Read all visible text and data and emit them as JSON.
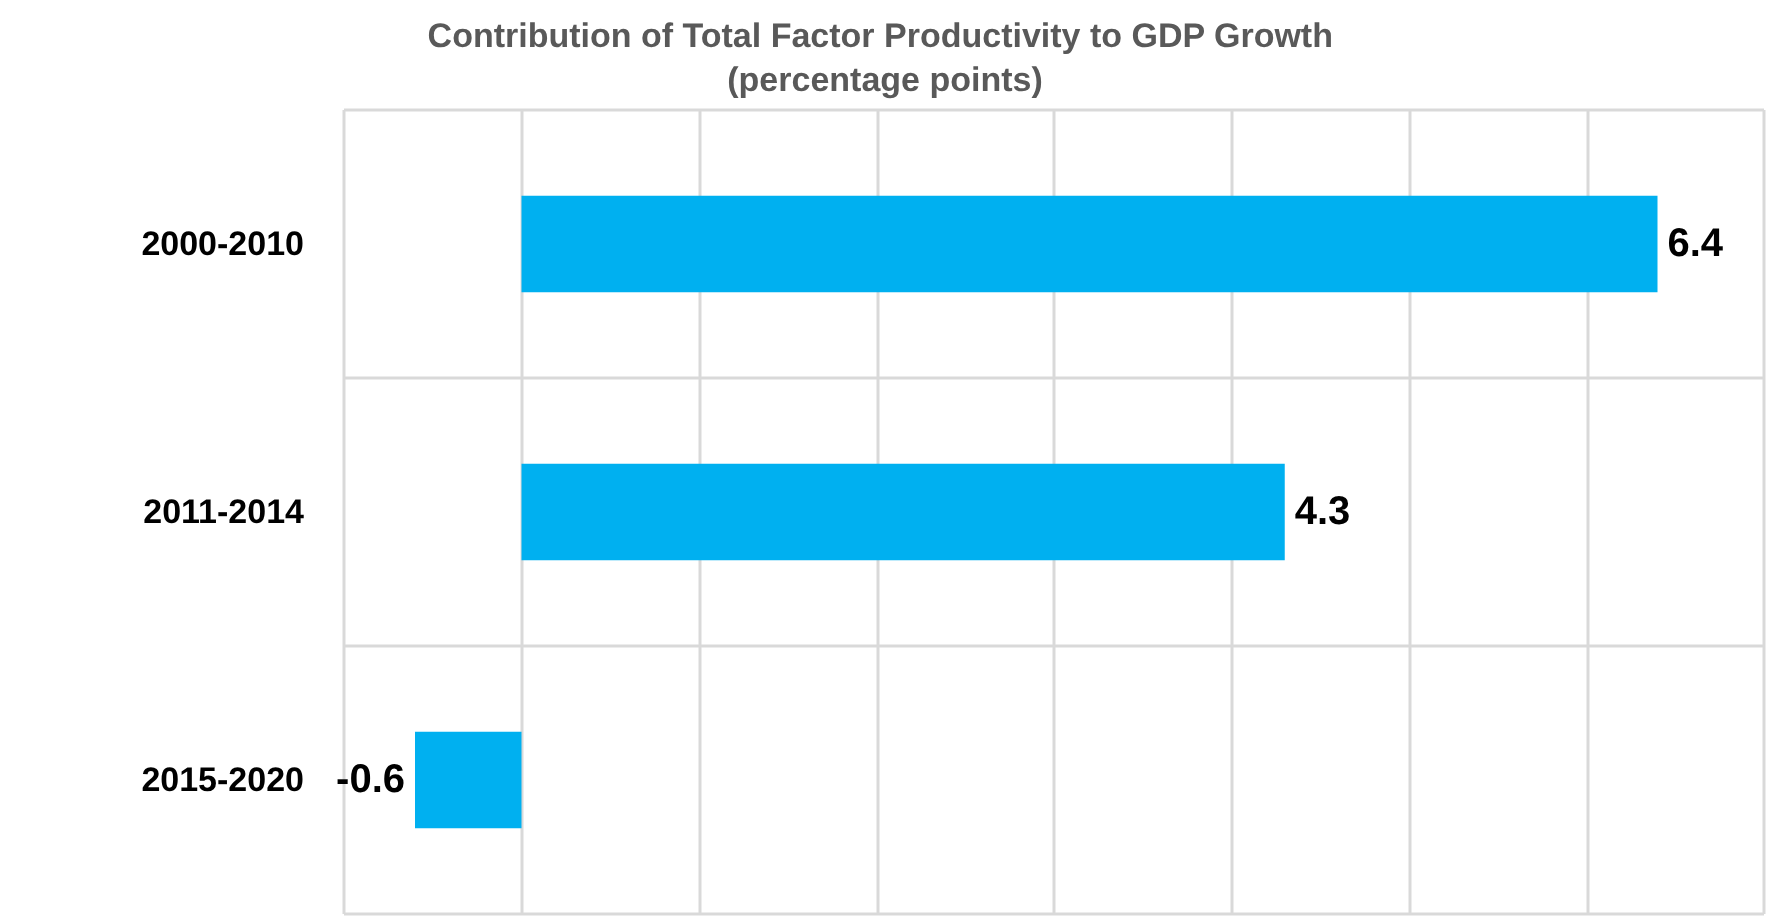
{
  "chart_data": {
    "type": "bar",
    "title": "Contribution of Total Factor Productivity to GDP Growth (percentage points)",
    "orientation": "horizontal",
    "categories": [
      "2000-2010",
      "2011-2014",
      "2015-2020"
    ],
    "values": [
      6.4,
      4.3,
      -0.6
    ],
    "color": "#00b0f0",
    "data_labels": true,
    "xlim": [
      -1,
      7
    ],
    "xticks": [
      {
        "value": -1,
        "label": null
      },
      {
        "value": 0,
        "label": null
      },
      {
        "value": 1,
        "label": null
      },
      {
        "value": 2,
        "label": null
      },
      {
        "value": 3,
        "label": null
      },
      {
        "value": 4,
        "label": null
      },
      {
        "value": 5,
        "label": null
      },
      {
        "value": 6,
        "label": null
      },
      {
        "value": 7,
        "label": null
      }
    ],
    "tick_labels": "y",
    "grid": true
  }
}
